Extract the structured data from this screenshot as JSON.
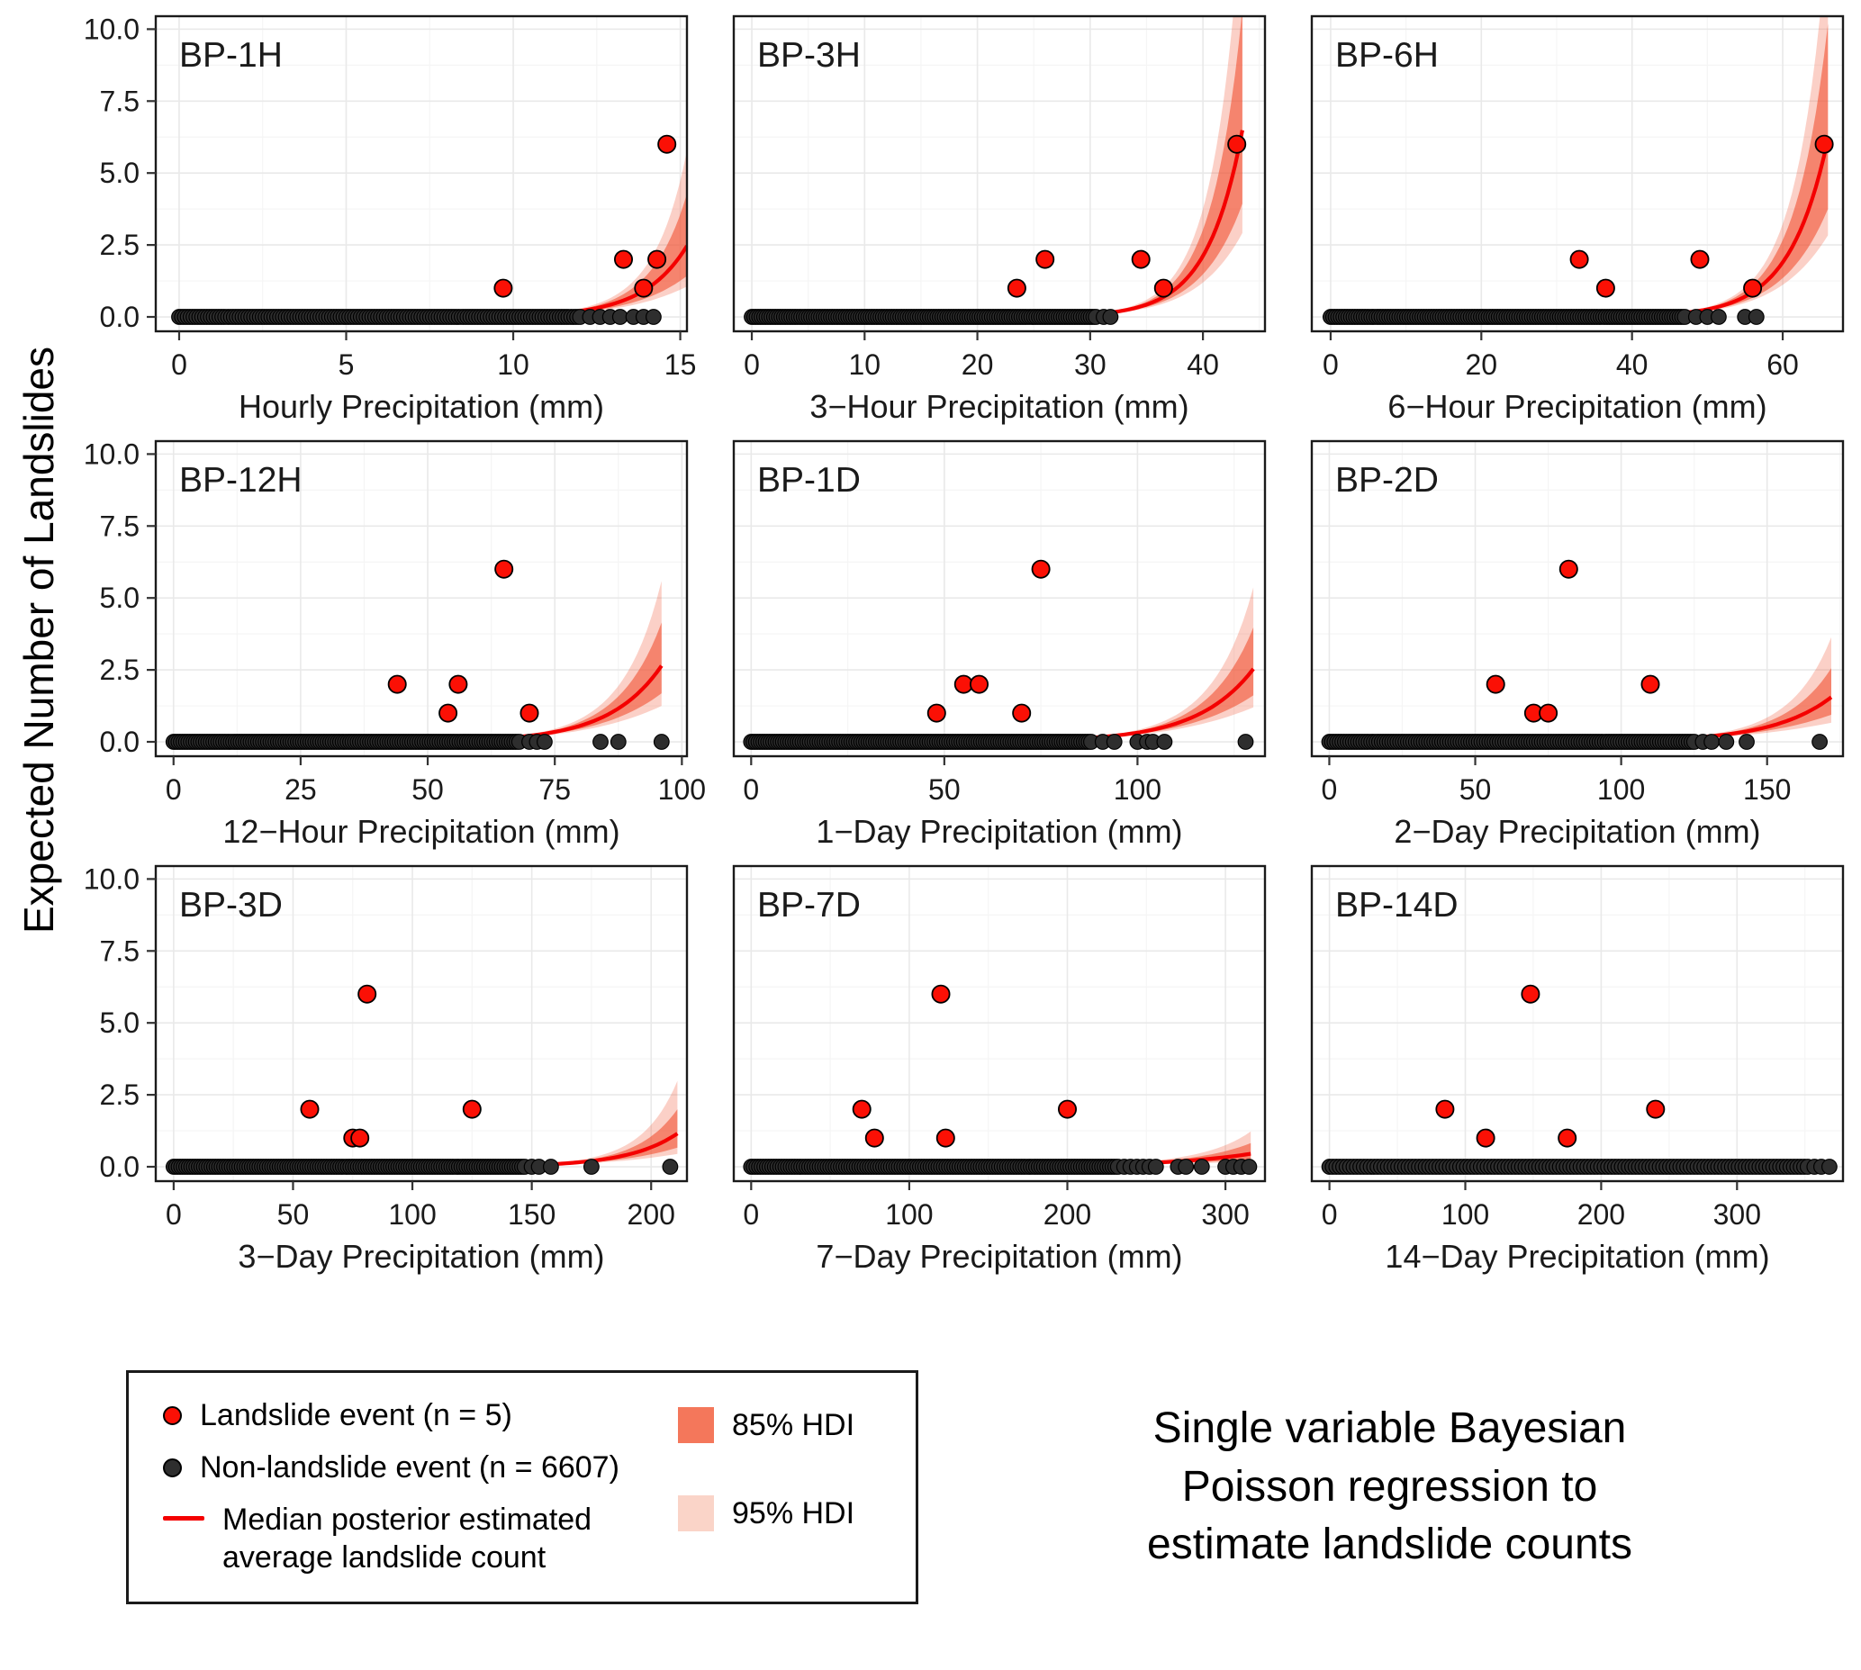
{
  "ylabel": "Expected Number of Landslides",
  "y_axis": {
    "range": [
      -0.5,
      10.45
    ],
    "ticks": [
      0,
      2.5,
      5,
      7.5,
      10
    ],
    "labels": [
      "0.0",
      "2.5",
      "5.0",
      "7.5",
      "10.0"
    ]
  },
  "chart_data": [
    {
      "type": "scatter",
      "panel_label": "BP-1H",
      "xlabel": "Hourly Precipitation (mm)",
      "x_range": [
        -0.7,
        15.2
      ],
      "x_ticks": [
        0,
        5,
        10,
        15
      ],
      "landslide_points": [
        [
          9.7,
          1
        ],
        [
          13.3,
          2
        ],
        [
          13.9,
          1
        ],
        [
          14.3,
          2
        ],
        [
          14.6,
          6
        ]
      ],
      "non_landslide": {
        "dense_max": 12.0,
        "outliers": [
          12.3,
          12.6,
          12.9,
          13.2,
          13.6,
          13.9,
          14.2
        ]
      },
      "curve": {
        "a": -10.8,
        "b": 0.77,
        "x_end": 15.2,
        "s85": 0.55,
        "s95": 0.85
      }
    },
    {
      "type": "scatter",
      "panel_label": "BP-3H",
      "xlabel": "3−Hour Precipitation (mm)",
      "x_range": [
        -1.6,
        45.5
      ],
      "x_ticks": [
        0,
        10,
        20,
        30,
        40
      ],
      "landslide_points": [
        [
          23.5,
          1
        ],
        [
          26,
          2
        ],
        [
          34.5,
          2
        ],
        [
          36.5,
          1
        ],
        [
          43,
          6
        ]
      ],
      "non_landslide": {
        "dense_max": 30.5,
        "outliers": [
          31.2,
          31.8
        ]
      },
      "curve": {
        "a": -12.05,
        "b": 0.32,
        "x_end": 43.5,
        "s85": 0.5,
        "s95": 0.8
      }
    },
    {
      "type": "scatter",
      "panel_label": "BP-6H",
      "xlabel": "6−Hour Precipitation (mm)",
      "x_range": [
        -2.5,
        68
      ],
      "x_ticks": [
        0,
        20,
        40,
        60
      ],
      "landslide_points": [
        [
          33,
          2
        ],
        [
          36.5,
          1
        ],
        [
          49,
          2
        ],
        [
          56,
          1
        ],
        [
          65.5,
          6
        ]
      ],
      "non_landslide": {
        "dense_max": 47,
        "outliers": [
          48.5,
          50,
          51.5,
          55,
          56.5
        ]
      },
      "curve": {
        "a": -11.18,
        "b": 0.197,
        "x_end": 66,
        "s85": 0.5,
        "s95": 0.78
      }
    },
    {
      "type": "scatter",
      "panel_label": "BP-12H",
      "xlabel": "12−Hour Precipitation (mm)",
      "x_range": [
        -3.5,
        101
      ],
      "x_ticks": [
        0,
        25,
        50,
        75,
        100
      ],
      "landslide_points": [
        [
          44,
          2
        ],
        [
          54,
          1
        ],
        [
          56,
          2
        ],
        [
          65,
          6
        ],
        [
          70,
          1
        ]
      ],
      "non_landslide": {
        "dense_max": 68,
        "outliers": [
          70,
          71.5,
          73,
          84,
          87.5,
          96
        ]
      },
      "curve": {
        "a": -8.34,
        "b": 0.097,
        "x_end": 96,
        "s85": 0.45,
        "s95": 0.75
      }
    },
    {
      "type": "scatter",
      "panel_label": "BP-1D",
      "xlabel": "1−Day Precipitation (mm)",
      "x_range": [
        -4.5,
        133
      ],
      "x_ticks": [
        0,
        50,
        100
      ],
      "landslide_points": [
        [
          48,
          1
        ],
        [
          55,
          2
        ],
        [
          59,
          2
        ],
        [
          70,
          1
        ],
        [
          75,
          6
        ]
      ],
      "non_landslide": {
        "dense_max": 88,
        "outliers": [
          91,
          94,
          100,
          102.5,
          104,
          107,
          128
        ]
      },
      "curve": {
        "a": -8.04,
        "b": 0.069,
        "x_end": 130,
        "s85": 0.45,
        "s95": 0.75
      }
    },
    {
      "type": "scatter",
      "panel_label": "BP-2D",
      "xlabel": "2−Day Precipitation (mm)",
      "x_range": [
        -6,
        176
      ],
      "x_ticks": [
        0,
        50,
        100,
        150
      ],
      "landslide_points": [
        [
          57,
          2
        ],
        [
          70,
          1
        ],
        [
          75,
          1
        ],
        [
          82,
          6
        ],
        [
          110,
          2
        ]
      ],
      "non_landslide": {
        "dense_max": 125,
        "outliers": [
          128,
          131,
          136,
          143,
          168
        ]
      },
      "curve": {
        "a": -8.16,
        "b": 0.05,
        "x_end": 172,
        "s85": 0.5,
        "s95": 0.85
      }
    },
    {
      "type": "scatter",
      "panel_label": "BP-3D",
      "xlabel": "3−Day Precipitation (mm)",
      "x_range": [
        -7.5,
        215
      ],
      "x_ticks": [
        0,
        50,
        100,
        150,
        200
      ],
      "landslide_points": [
        [
          57,
          2
        ],
        [
          75,
          1
        ],
        [
          78,
          1
        ],
        [
          81,
          6
        ],
        [
          125,
          2
        ]
      ],
      "non_landslide": {
        "dense_max": 147,
        "outliers": [
          150,
          153,
          158,
          175,
          208
        ]
      },
      "curve": {
        "a": -10.09,
        "b": 0.0485,
        "x_end": 211,
        "s85": 0.55,
        "s95": 0.95
      }
    },
    {
      "type": "scatter",
      "panel_label": "BP-7D",
      "xlabel": "7−Day Precipitation (mm)",
      "x_range": [
        -11,
        325
      ],
      "x_ticks": [
        0,
        100,
        200,
        300
      ],
      "landslide_points": [
        [
          70,
          2
        ],
        [
          78,
          1
        ],
        [
          120,
          6
        ],
        [
          123,
          1
        ],
        [
          200,
          2
        ]
      ],
      "non_landslide": {
        "dense_max": 232,
        "outliers": [
          236,
          240,
          244,
          248,
          252,
          256,
          270,
          275,
          285,
          300,
          305,
          310,
          315
        ]
      },
      "curve": {
        "a": -6.8,
        "b": 0.019,
        "x_end": 316,
        "s85": 0.6,
        "s95": 1.0
      }
    },
    {
      "type": "scatter",
      "panel_label": "BP-14D",
      "xlabel": "14−Day Precipitation (mm)",
      "x_range": [
        -13,
        378
      ],
      "x_ticks": [
        0,
        100,
        200,
        300
      ],
      "landslide_points": [
        [
          85,
          2
        ],
        [
          115,
          1
        ],
        [
          148,
          6
        ],
        [
          175,
          1
        ],
        [
          240,
          2
        ]
      ],
      "non_landslide": {
        "dense_max": 352,
        "outliers": [
          357,
          362,
          368
        ]
      },
      "curve": {
        "a": -5.5,
        "b": 0.008,
        "x_end": 372,
        "s85": 0.4,
        "s95": 0.7
      }
    }
  ],
  "legend": {
    "landslide_label": "Landslide event (n = 5)",
    "non_landslide_label": "Non-landslide event (n = 6607)",
    "median_label_line1": "Median posterior estimated",
    "median_label_line2": "average landslide count",
    "hdi85_label": "85% HDI",
    "hdi95_label": "95% HDI"
  },
  "caption_lines": [
    "Single variable Bayesian",
    "Poisson regression to",
    "estimate landslide counts"
  ],
  "colors": {
    "landslide_fill": "#FB1005",
    "non_landslide_fill": "#2E2E2E",
    "point_stroke": "#000000",
    "median_line": "#F40000",
    "hdi85_fill": "rgba(240,85,55,0.62)",
    "hdi95_fill": "rgba(240,85,55,0.28)",
    "legend_hdi85": "#F4775B",
    "legend_hdi95": "#FAD4C8",
    "grid_major": "#E9E9E9",
    "grid_minor": "#F5F5F5",
    "panel_border": "#1A1A1A"
  }
}
